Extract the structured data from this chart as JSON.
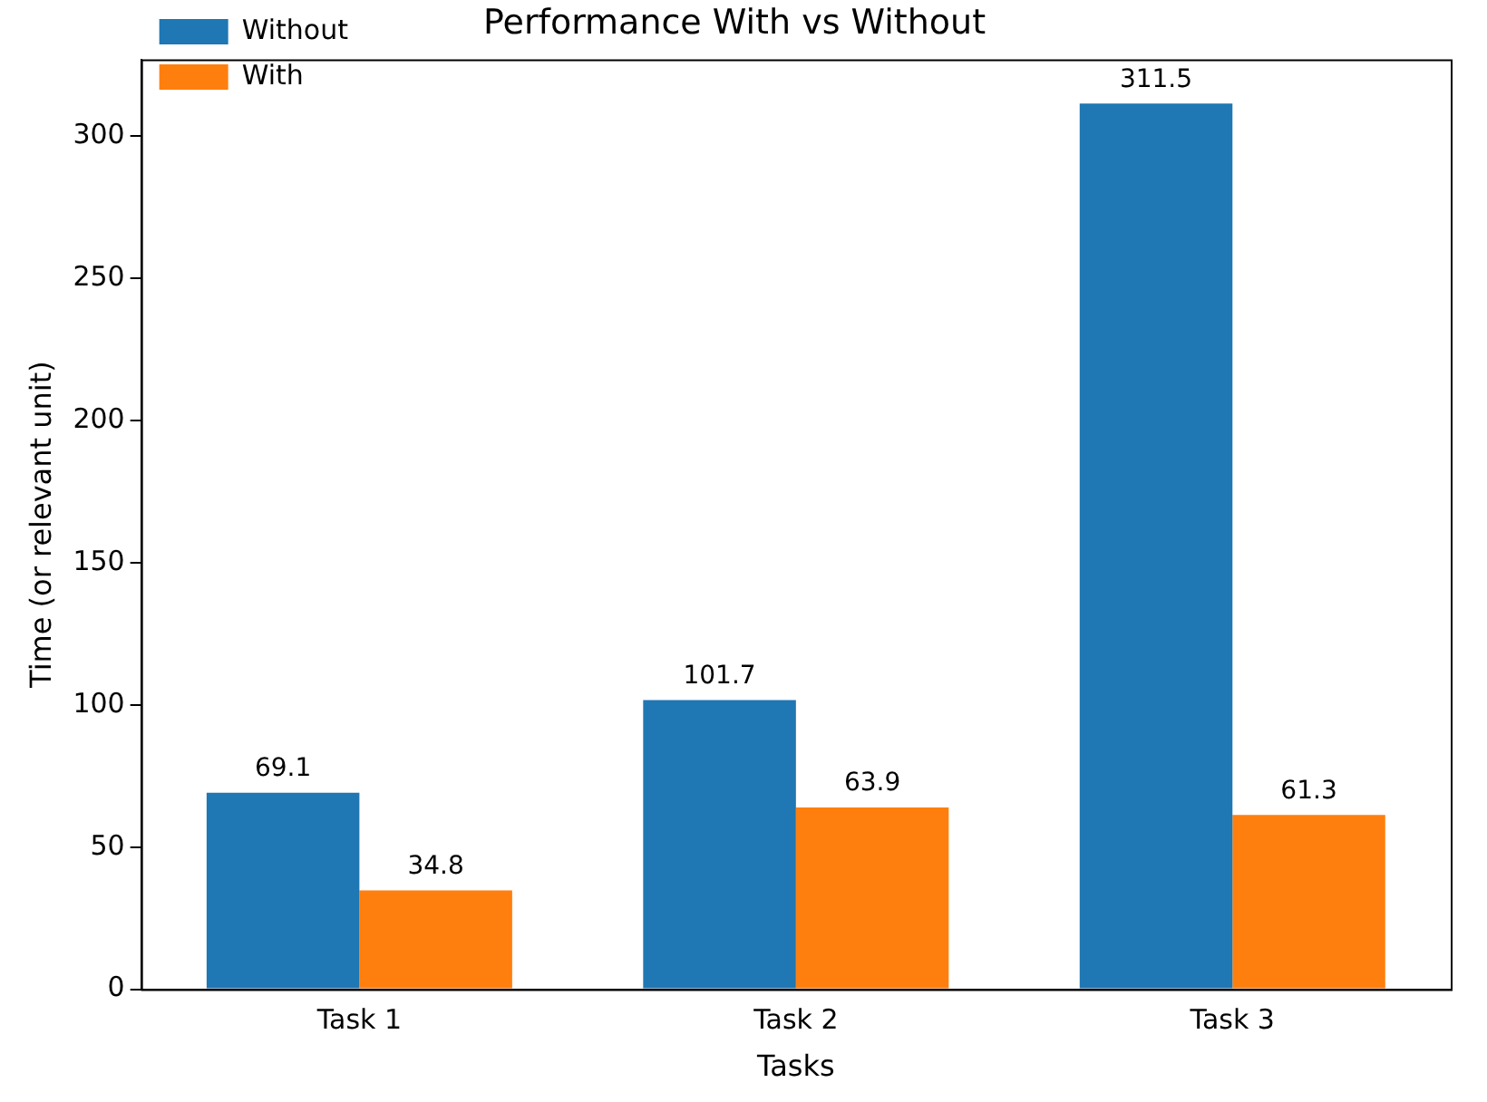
{
  "chart_data": {
    "type": "bar",
    "title": "Performance With vs Without",
    "xlabel": "Tasks",
    "ylabel": "Time (or relevant unit)",
    "categories": [
      "Task 1",
      "Task 2",
      "Task 3"
    ],
    "series": [
      {
        "name": "Without",
        "color": "#1f77b4",
        "values": [
          69.1,
          101.7,
          311.5
        ]
      },
      {
        "name": "With",
        "color": "#ff7f0e",
        "values": [
          34.8,
          63.9,
          61.3
        ]
      }
    ],
    "ylim": [
      0,
      327
    ],
    "yticks": [
      0,
      50,
      100,
      150,
      200,
      250,
      300
    ],
    "grid": false,
    "legend": "top left",
    "data_labels": true
  }
}
